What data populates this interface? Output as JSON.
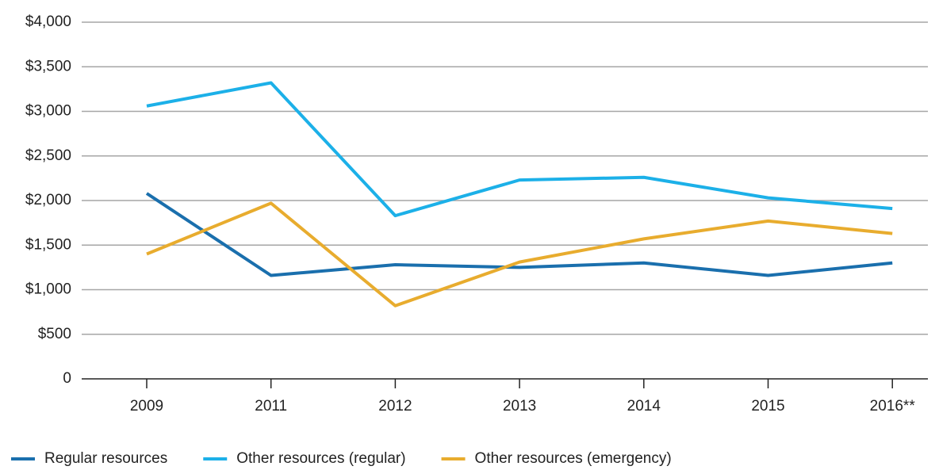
{
  "chart_data": {
    "type": "line",
    "categories": [
      "2009",
      "2011",
      "2012",
      "2013",
      "2014",
      "2015",
      "2016**"
    ],
    "series": [
      {
        "name": "Regular resources",
        "color": "#1a6fad",
        "values": [
          2080,
          1160,
          1280,
          1250,
          1300,
          1160,
          1300
        ]
      },
      {
        "name": "Other resources (regular)",
        "color": "#1cb0e8",
        "values": [
          3060,
          3320,
          1830,
          2230,
          2260,
          2030,
          1910
        ]
      },
      {
        "name": "Other resources (emergency)",
        "color": "#e8ac2e",
        "values": [
          1400,
          1970,
          820,
          1310,
          1570,
          1770,
          1630
        ]
      }
    ],
    "ylim": [
      0,
      4000
    ],
    "yticks": [
      0,
      {
        "value": 500,
        "label": "$500"
      },
      {
        "value": 1000,
        "label": "$1,000"
      },
      {
        "value": 1500,
        "label": "$1,500"
      },
      {
        "value": 2000,
        "label": "$2,000"
      },
      {
        "value": 2500,
        "label": "$2,500"
      },
      {
        "value": 3000,
        "label": "$3,000"
      },
      {
        "value": 3500,
        "label": "$3,500"
      },
      {
        "value": 4000,
        "label": "$4,000"
      }
    ],
    "grid": true,
    "legend": "bottom"
  }
}
